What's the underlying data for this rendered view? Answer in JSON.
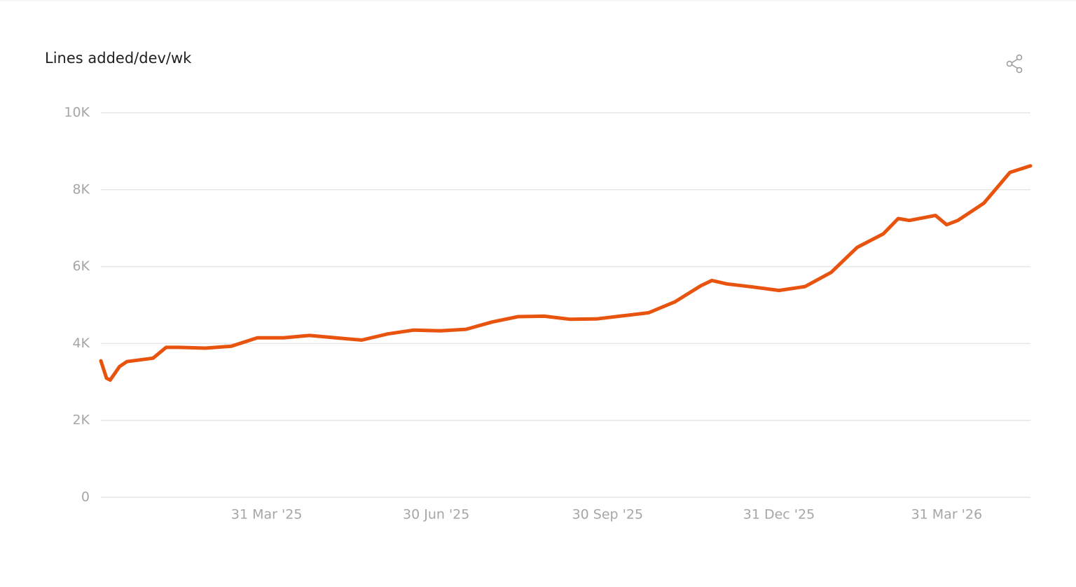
{
  "chart_data": {
    "type": "line",
    "title": "Lines added/dev/wk",
    "x": [
      "2025-01-01",
      "2025-01-04",
      "2025-01-06",
      "2025-01-11",
      "2025-01-15",
      "2025-01-29",
      "2025-02-05",
      "2025-02-12",
      "2025-02-26",
      "2025-03-12",
      "2025-03-26",
      "2025-04-09",
      "2025-04-23",
      "2025-05-07",
      "2025-05-21",
      "2025-06-04",
      "2025-06-18",
      "2025-07-02",
      "2025-07-16",
      "2025-07-30",
      "2025-08-13",
      "2025-08-27",
      "2025-09-10",
      "2025-09-24",
      "2025-10-08",
      "2025-10-22",
      "2025-11-05",
      "2025-11-19",
      "2025-11-25",
      "2025-12-03",
      "2025-12-17",
      "2025-12-31",
      "2026-01-14",
      "2026-01-28",
      "2026-02-11",
      "2026-02-25",
      "2026-03-05",
      "2026-03-11",
      "2026-03-25",
      "2026-03-31",
      "2026-04-06",
      "2026-04-20",
      "2026-05-04",
      "2026-05-15"
    ],
    "values": [
      3550,
      3100,
      3050,
      3400,
      3530,
      3620,
      3900,
      3900,
      3880,
      3930,
      4150,
      4150,
      4210,
      4150,
      4090,
      4250,
      4350,
      4330,
      4370,
      4560,
      4700,
      4710,
      4630,
      4640,
      4720,
      4800,
      5080,
      5500,
      5640,
      5550,
      5470,
      5380,
      5480,
      5850,
      6500,
      6850,
      7250,
      7200,
      7330,
      7090,
      7200,
      7650,
      8450,
      8620
    ],
    "color": "#e8530e",
    "xlim": [
      "2025-01-01",
      "2026-05-15"
    ],
    "xticks": [
      {
        "value": "2025-03-31",
        "label": "31 Mar '25"
      },
      {
        "value": "2025-06-30",
        "label": "30 Jun '25"
      },
      {
        "value": "2025-09-30",
        "label": "30 Sep '25"
      },
      {
        "value": "2025-12-31",
        "label": "31 Dec '25"
      },
      {
        "value": "2026-03-31",
        "label": "31 Mar '26"
      }
    ],
    "ylim": [
      0,
      10000
    ],
    "yticks": [
      0,
      {
        "value": 2000,
        "label": "2K"
      },
      {
        "value": 4000,
        "label": "4K"
      },
      {
        "value": 6000,
        "label": "6K"
      },
      {
        "value": 8000,
        "label": "8K"
      },
      {
        "value": 10000,
        "label": "10K"
      }
    ],
    "grid": true
  }
}
